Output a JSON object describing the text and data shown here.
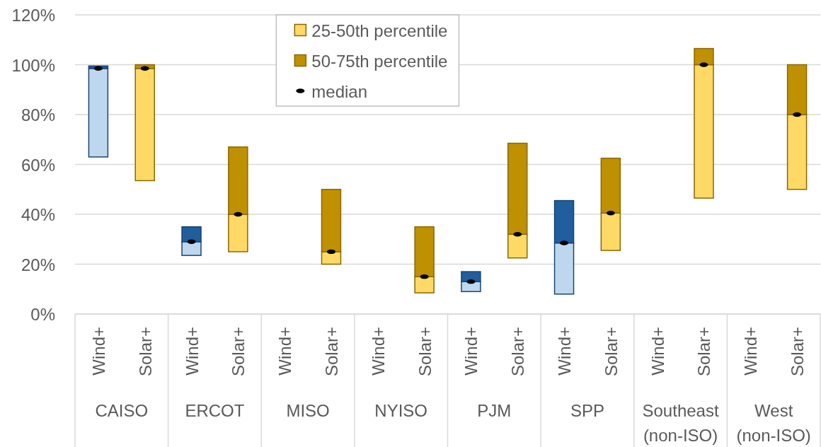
{
  "chart_data": {
    "type": "bar",
    "stacked": true,
    "categories": [
      "Wind+",
      "Solar+",
      "Wind+",
      "Solar+",
      "Wind+",
      "Solar+",
      "Wind+",
      "Solar+",
      "Wind+",
      "Solar+",
      "Wind+",
      "Solar+",
      "Wind+",
      "Solar+",
      "Wind+",
      "Solar+"
    ],
    "annotations": [
      "CAISO",
      "ERCOT",
      "MISO",
      "NYISO",
      "PJM",
      "SPP",
      "Southeast (non-ISO)",
      "West (non-ISO)"
    ],
    "series": [
      {
        "name": "25-50th percentile",
        "color": "#ffd966",
        "colors": [
          "#bdd7ee",
          "#ffd966",
          "#bdd7ee",
          "#ffd966",
          null,
          "#ffd966",
          null,
          "#ffd966",
          "#bdd7ee",
          "#ffd966",
          "#bdd7ee",
          "#ffd966",
          null,
          "#ffd966",
          null,
          "#ffd966"
        ],
        "base": [
          63,
          53.5,
          23.5,
          25,
          null,
          20,
          null,
          8.5,
          9,
          22.5,
          8,
          25.5,
          null,
          46.5,
          null,
          50
        ],
        "values": [
          35.5,
          45,
          5.5,
          15,
          null,
          5,
          null,
          6.5,
          4,
          9.5,
          20.5,
          15,
          null,
          53.5,
          null,
          30
        ]
      },
      {
        "name": "50-75th percentile",
        "color": "#bf9000",
        "colors": [
          "#205e9e",
          "#bf9000",
          "#205e9e",
          "#bf9000",
          null,
          "#bf9000",
          null,
          "#bf9000",
          "#205e9e",
          "#bf9000",
          "#205e9e",
          "#bf9000",
          null,
          "#bf9000",
          null,
          "#bf9000"
        ],
        "values": [
          1,
          1.5,
          6,
          27,
          null,
          25,
          null,
          20,
          4,
          36.5,
          17,
          22,
          null,
          6.5,
          null,
          20
        ]
      },
      {
        "name": "median",
        "type": "scatter",
        "color": "#000000",
        "values": [
          98.5,
          98.5,
          29,
          40,
          null,
          25,
          null,
          15,
          13,
          32,
          28.5,
          40.5,
          null,
          100,
          null,
          80
        ]
      }
    ],
    "ylim": [
      0,
      120
    ],
    "yticks": [
      {
        "value": 0,
        "label": "0%"
      },
      {
        "value": 20,
        "label": "20%"
      },
      {
        "value": 40,
        "label": "40%"
      },
      {
        "value": 60,
        "label": "60%"
      },
      {
        "value": 80,
        "label": "80%"
      },
      {
        "value": 100,
        "label": "100%"
      },
      {
        "value": 120,
        "label": "120%"
      }
    ],
    "grid": "y",
    "legend": "top"
  }
}
